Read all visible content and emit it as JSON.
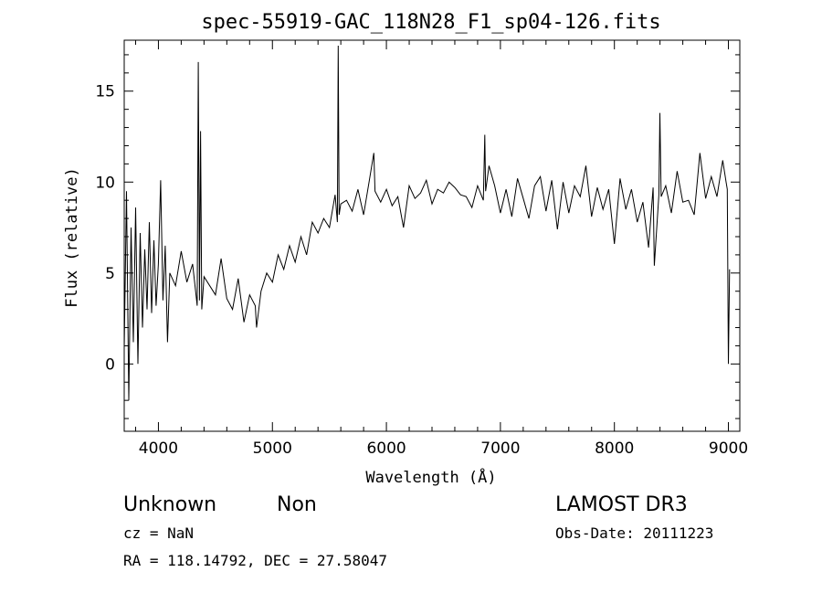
{
  "chart_data": {
    "type": "line",
    "title": "spec-55919-GAC_118N28_F1_sp04-126.fits",
    "xlabel": "Wavelength (Å)",
    "ylabel": "Flux (relative)",
    "xlim": [
      3700,
      9100
    ],
    "ylim": [
      -3.7,
      17.8
    ],
    "xticks": [
      4000,
      5000,
      6000,
      7000,
      8000,
      9000
    ],
    "yticks": [
      0,
      5,
      10,
      15
    ],
    "grid": false,
    "series": [
      {
        "x": [
          3700,
          3720,
          3740,
          3760,
          3780,
          3800,
          3820,
          3840,
          3860,
          3880,
          3900,
          3920,
          3940,
          3960,
          3980,
          4000,
          4020,
          4040,
          4060,
          4080,
          4100,
          4150,
          4200,
          4250,
          4300,
          4340,
          4350,
          4360,
          4370,
          4380,
          4400,
          4450,
          4500,
          4550,
          4600,
          4650,
          4700,
          4750,
          4800,
          4850,
          4861,
          4900,
          4950,
          5000,
          5050,
          5100,
          5150,
          5200,
          5250,
          5300,
          5350,
          5400,
          5450,
          5500,
          5550,
          5570,
          5577,
          5585,
          5600,
          5650,
          5700,
          5750,
          5800,
          5850,
          5890,
          5900,
          5950,
          6000,
          6050,
          6100,
          6150,
          6200,
          6250,
          6300,
          6350,
          6400,
          6450,
          6500,
          6550,
          6600,
          6650,
          6700,
          6750,
          6800,
          6850,
          6863,
          6870,
          6900,
          6950,
          7000,
          7050,
          7100,
          7150,
          7200,
          7250,
          7300,
          7350,
          7400,
          7450,
          7500,
          7550,
          7600,
          7650,
          7700,
          7750,
          7800,
          7850,
          7900,
          7950,
          8000,
          8050,
          8100,
          8150,
          8200,
          8250,
          8300,
          8340,
          8350,
          8390,
          8399,
          8410,
          8450,
          8500,
          8550,
          8600,
          8650,
          8700,
          8750,
          8800,
          8850,
          8900,
          8950,
          8980,
          8990,
          9000,
          9010
        ],
        "y": [
          0.8,
          9.5,
          -2.0,
          7.5,
          1.2,
          8.6,
          0.0,
          7.2,
          2.0,
          6.3,
          3.0,
          7.8,
          2.8,
          6.8,
          3.2,
          5.5,
          10.1,
          3.5,
          6.5,
          1.2,
          5.0,
          4.3,
          6.2,
          4.5,
          5.5,
          3.2,
          16.6,
          3.5,
          12.8,
          3.0,
          4.8,
          4.3,
          3.8,
          5.8,
          3.6,
          3.0,
          4.7,
          2.3,
          3.8,
          3.2,
          2.0,
          4.0,
          5.0,
          4.5,
          6.0,
          5.2,
          6.5,
          5.6,
          7.0,
          6.0,
          7.8,
          7.2,
          8.0,
          7.5,
          9.3,
          7.8,
          17.5,
          8.2,
          8.8,
          9.0,
          8.4,
          9.6,
          8.2,
          10.1,
          11.6,
          9.5,
          8.9,
          9.6,
          8.7,
          9.2,
          7.5,
          9.8,
          9.1,
          9.4,
          10.1,
          8.8,
          9.6,
          9.4,
          10.0,
          9.7,
          9.3,
          9.2,
          8.6,
          9.8,
          9.0,
          12.6,
          9.5,
          10.9,
          9.8,
          8.3,
          9.6,
          8.1,
          10.2,
          9.1,
          8.0,
          9.8,
          10.3,
          8.4,
          10.1,
          7.4,
          10.0,
          8.3,
          9.8,
          9.2,
          10.9,
          8.1,
          9.7,
          8.5,
          9.6,
          6.6,
          10.2,
          8.5,
          9.6,
          7.8,
          8.9,
          6.4,
          9.7,
          5.4,
          9.3,
          13.8,
          9.2,
          9.8,
          8.3,
          10.6,
          8.9,
          9.0,
          8.2,
          11.6,
          9.1,
          10.3,
          9.2,
          11.2,
          10.0,
          9.6,
          0.0,
          5.2
        ]
      }
    ]
  },
  "footer": {
    "class_label": "Unknown",
    "subclass_label": "Non",
    "cz_line": "cz = NaN",
    "coords_line": "RA = 118.14792, DEC =  27.58047",
    "survey_label": "LAMOST DR3",
    "obs_date_line": "Obs-Date: 20111223"
  }
}
